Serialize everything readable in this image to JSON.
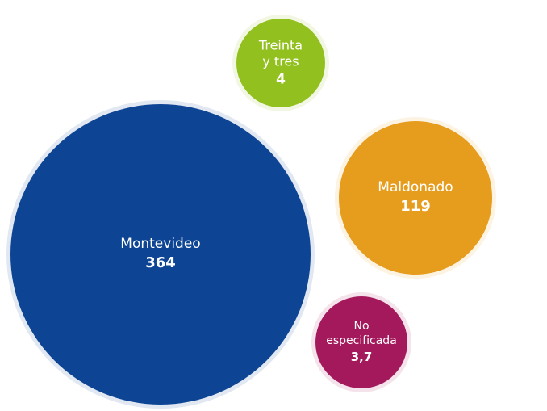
{
  "chart_data": {
    "type": "bubble",
    "categories": [
      "Montevideo",
      "Treinta y tres",
      "Maldonado",
      "No especificada"
    ],
    "values": [
      364,
      4,
      119,
      3.7
    ],
    "value_labels": [
      "364",
      "4",
      "119",
      "3,7"
    ],
    "colors": [
      "#0d4594",
      "#92c01f",
      "#e69c1c",
      "#a3195b"
    ]
  }
}
